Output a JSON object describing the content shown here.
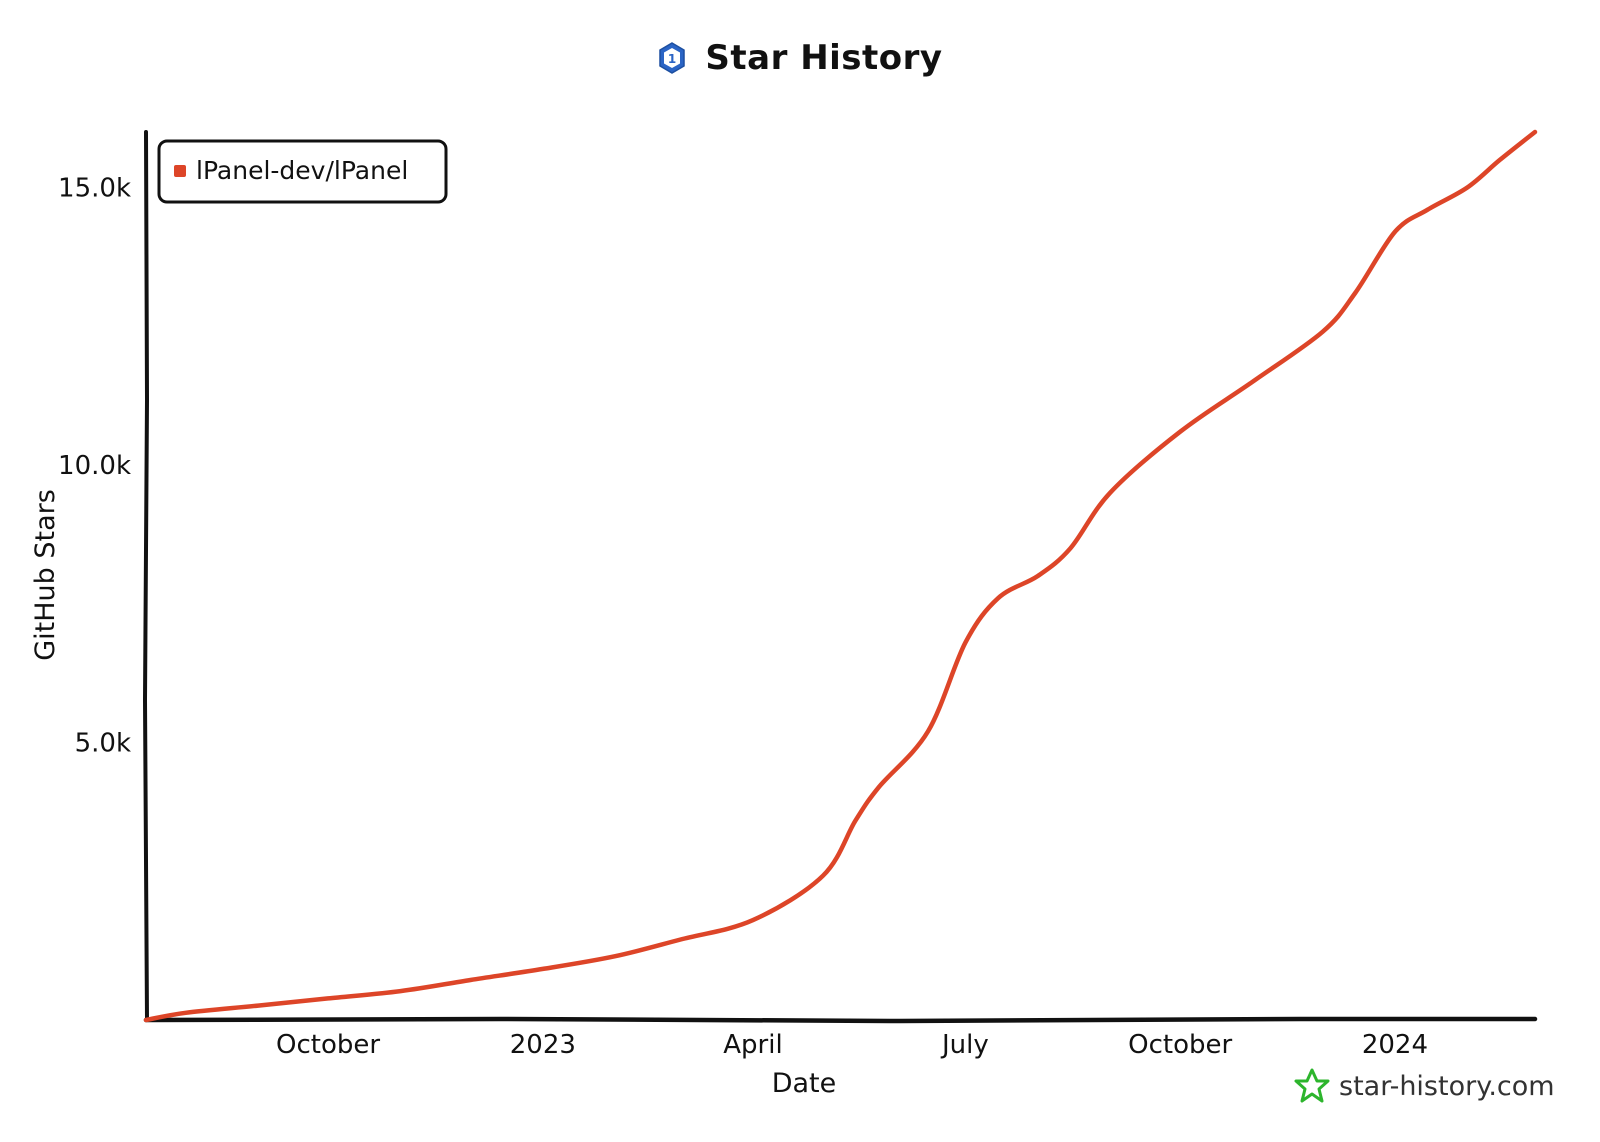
{
  "chart_data": {
    "type": "line",
    "title": "Star History",
    "xlabel": "Date",
    "ylabel": "GitHub Stars",
    "x_ticks": [
      "October",
      "2023",
      "April",
      "July",
      "October",
      "2024"
    ],
    "y_ticks": [
      "5.0k",
      "10.0k",
      "15.0k"
    ],
    "ylim": [
      0,
      16000
    ],
    "xlim": [
      "2022-07-15",
      "2024-03-01"
    ],
    "legend_position": "top-left",
    "grid": false,
    "series": [
      {
        "name": "lPanel-dev/lPanel",
        "color": "#dd4528",
        "points": [
          [
            "2022-07-15",
            0
          ],
          [
            "2022-08-01",
            130
          ],
          [
            "2022-09-01",
            260
          ],
          [
            "2022-10-01",
            390
          ],
          [
            "2022-11-01",
            520
          ],
          [
            "2022-12-01",
            720
          ],
          [
            "2023-01-01",
            920
          ],
          [
            "2023-02-01",
            1150
          ],
          [
            "2023-03-01",
            1450
          ],
          [
            "2023-04-01",
            1800
          ],
          [
            "2023-05-01",
            2600
          ],
          [
            "2023-05-15",
            3600
          ],
          [
            "2023-05-25",
            4200
          ],
          [
            "2023-06-15",
            5200
          ],
          [
            "2023-07-01",
            6800
          ],
          [
            "2023-07-15",
            7600
          ],
          [
            "2023-08-01",
            8000
          ],
          [
            "2023-08-15",
            8500
          ],
          [
            "2023-09-01",
            9500
          ],
          [
            "2023-10-01",
            10600
          ],
          [
            "2023-11-01",
            11500
          ],
          [
            "2023-12-01",
            12400
          ],
          [
            "2023-12-15",
            13100
          ],
          [
            "2024-01-01",
            14200
          ],
          [
            "2024-01-15",
            14600
          ],
          [
            "2024-02-01",
            15000
          ],
          [
            "2024-02-15",
            15500
          ],
          [
            "2024-03-01",
            16000
          ]
        ]
      }
    ]
  },
  "branding": {
    "site": "star-history.com",
    "logo_icon": "star-history-logo-icon",
    "logo_color": "#2a64c5",
    "site_icon": "star-outline-icon",
    "site_icon_color": "#2db52d"
  }
}
